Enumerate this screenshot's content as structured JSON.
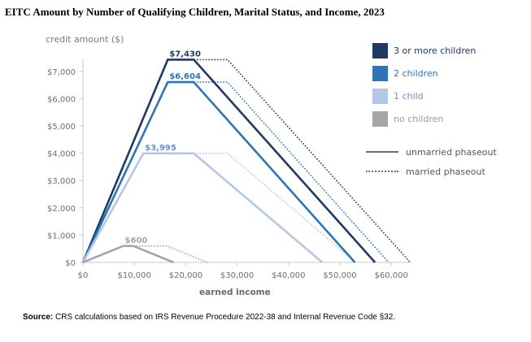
{
  "title": "EITC Amount by Number of Qualifying Children, Marital Status, and Income, 2023",
  "source_label": "Source:",
  "source_text": " CRS calculations based on IRS Revenue Procedure 2022-38 and Internal Revenue Code §32.",
  "chart_data": {
    "type": "line",
    "title": "EITC Amount by Number of Qualifying Children, Marital Status, and Income, 2023",
    "xlabel": "earned income",
    "ylabel": "credit amount ($)",
    "xlim": [
      0,
      63698
    ],
    "ylim": [
      0,
      7430
    ],
    "x_ticks": [
      0,
      10000,
      20000,
      30000,
      40000,
      50000,
      60000
    ],
    "x_tick_labels": [
      "$0",
      "$10,000",
      "$20,000",
      "$30,000",
      "$40,000",
      "$50,000",
      "$60,000"
    ],
    "y_ticks": [
      0,
      1000,
      2000,
      3000,
      4000,
      5000,
      6000,
      7000
    ],
    "y_tick_labels": [
      "$0",
      "$1,000",
      "$2,000",
      "$3,000",
      "$4,000",
      "$5,000",
      "$6,000",
      "$7,000"
    ],
    "grid": false,
    "legend_position": "right",
    "series": [
      {
        "name": "3 or more children",
        "color": "#1f3864",
        "max_label": "$7,430",
        "max_credit": 7430,
        "unmarried": [
          [
            0,
            0
          ],
          [
            16510,
            7430
          ],
          [
            21560,
            7430
          ],
          [
            56838,
            0
          ]
        ],
        "married": [
          [
            21560,
            7430
          ],
          [
            28120,
            7430
          ],
          [
            63698,
            0
          ]
        ]
      },
      {
        "name": "2 children",
        "color": "#2e75b6",
        "max_label": "$6,604",
        "max_credit": 6604,
        "unmarried": [
          [
            0,
            0
          ],
          [
            16510,
            6604
          ],
          [
            21560,
            6604
          ],
          [
            52918,
            0
          ]
        ],
        "married": [
          [
            21560,
            6604
          ],
          [
            28120,
            6604
          ],
          [
            59478,
            0
          ]
        ]
      },
      {
        "name": "1 child",
        "color": "#b4c7e7",
        "label_color": "#6a8fcf",
        "max_label": "$3,995",
        "max_credit": 3995,
        "unmarried": [
          [
            0,
            0
          ],
          [
            11750,
            3995
          ],
          [
            21560,
            3995
          ],
          [
            46560,
            0
          ]
        ],
        "married": [
          [
            21560,
            3995
          ],
          [
            28120,
            3995
          ],
          [
            53120,
            0
          ]
        ]
      },
      {
        "name": "no children",
        "color": "#a6a6a6",
        "max_label": "$600",
        "max_credit": 600,
        "unmarried": [
          [
            0,
            0
          ],
          [
            7840,
            600
          ],
          [
            9800,
            600
          ],
          [
            17640,
            0
          ]
        ],
        "married": [
          [
            9800,
            600
          ],
          [
            16370,
            600
          ],
          [
            24210,
            0
          ]
        ]
      }
    ],
    "line_legend": [
      {
        "name": "unmarried phaseout",
        "style": "solid"
      },
      {
        "name": "married phaseout",
        "style": "dotted"
      }
    ]
  }
}
